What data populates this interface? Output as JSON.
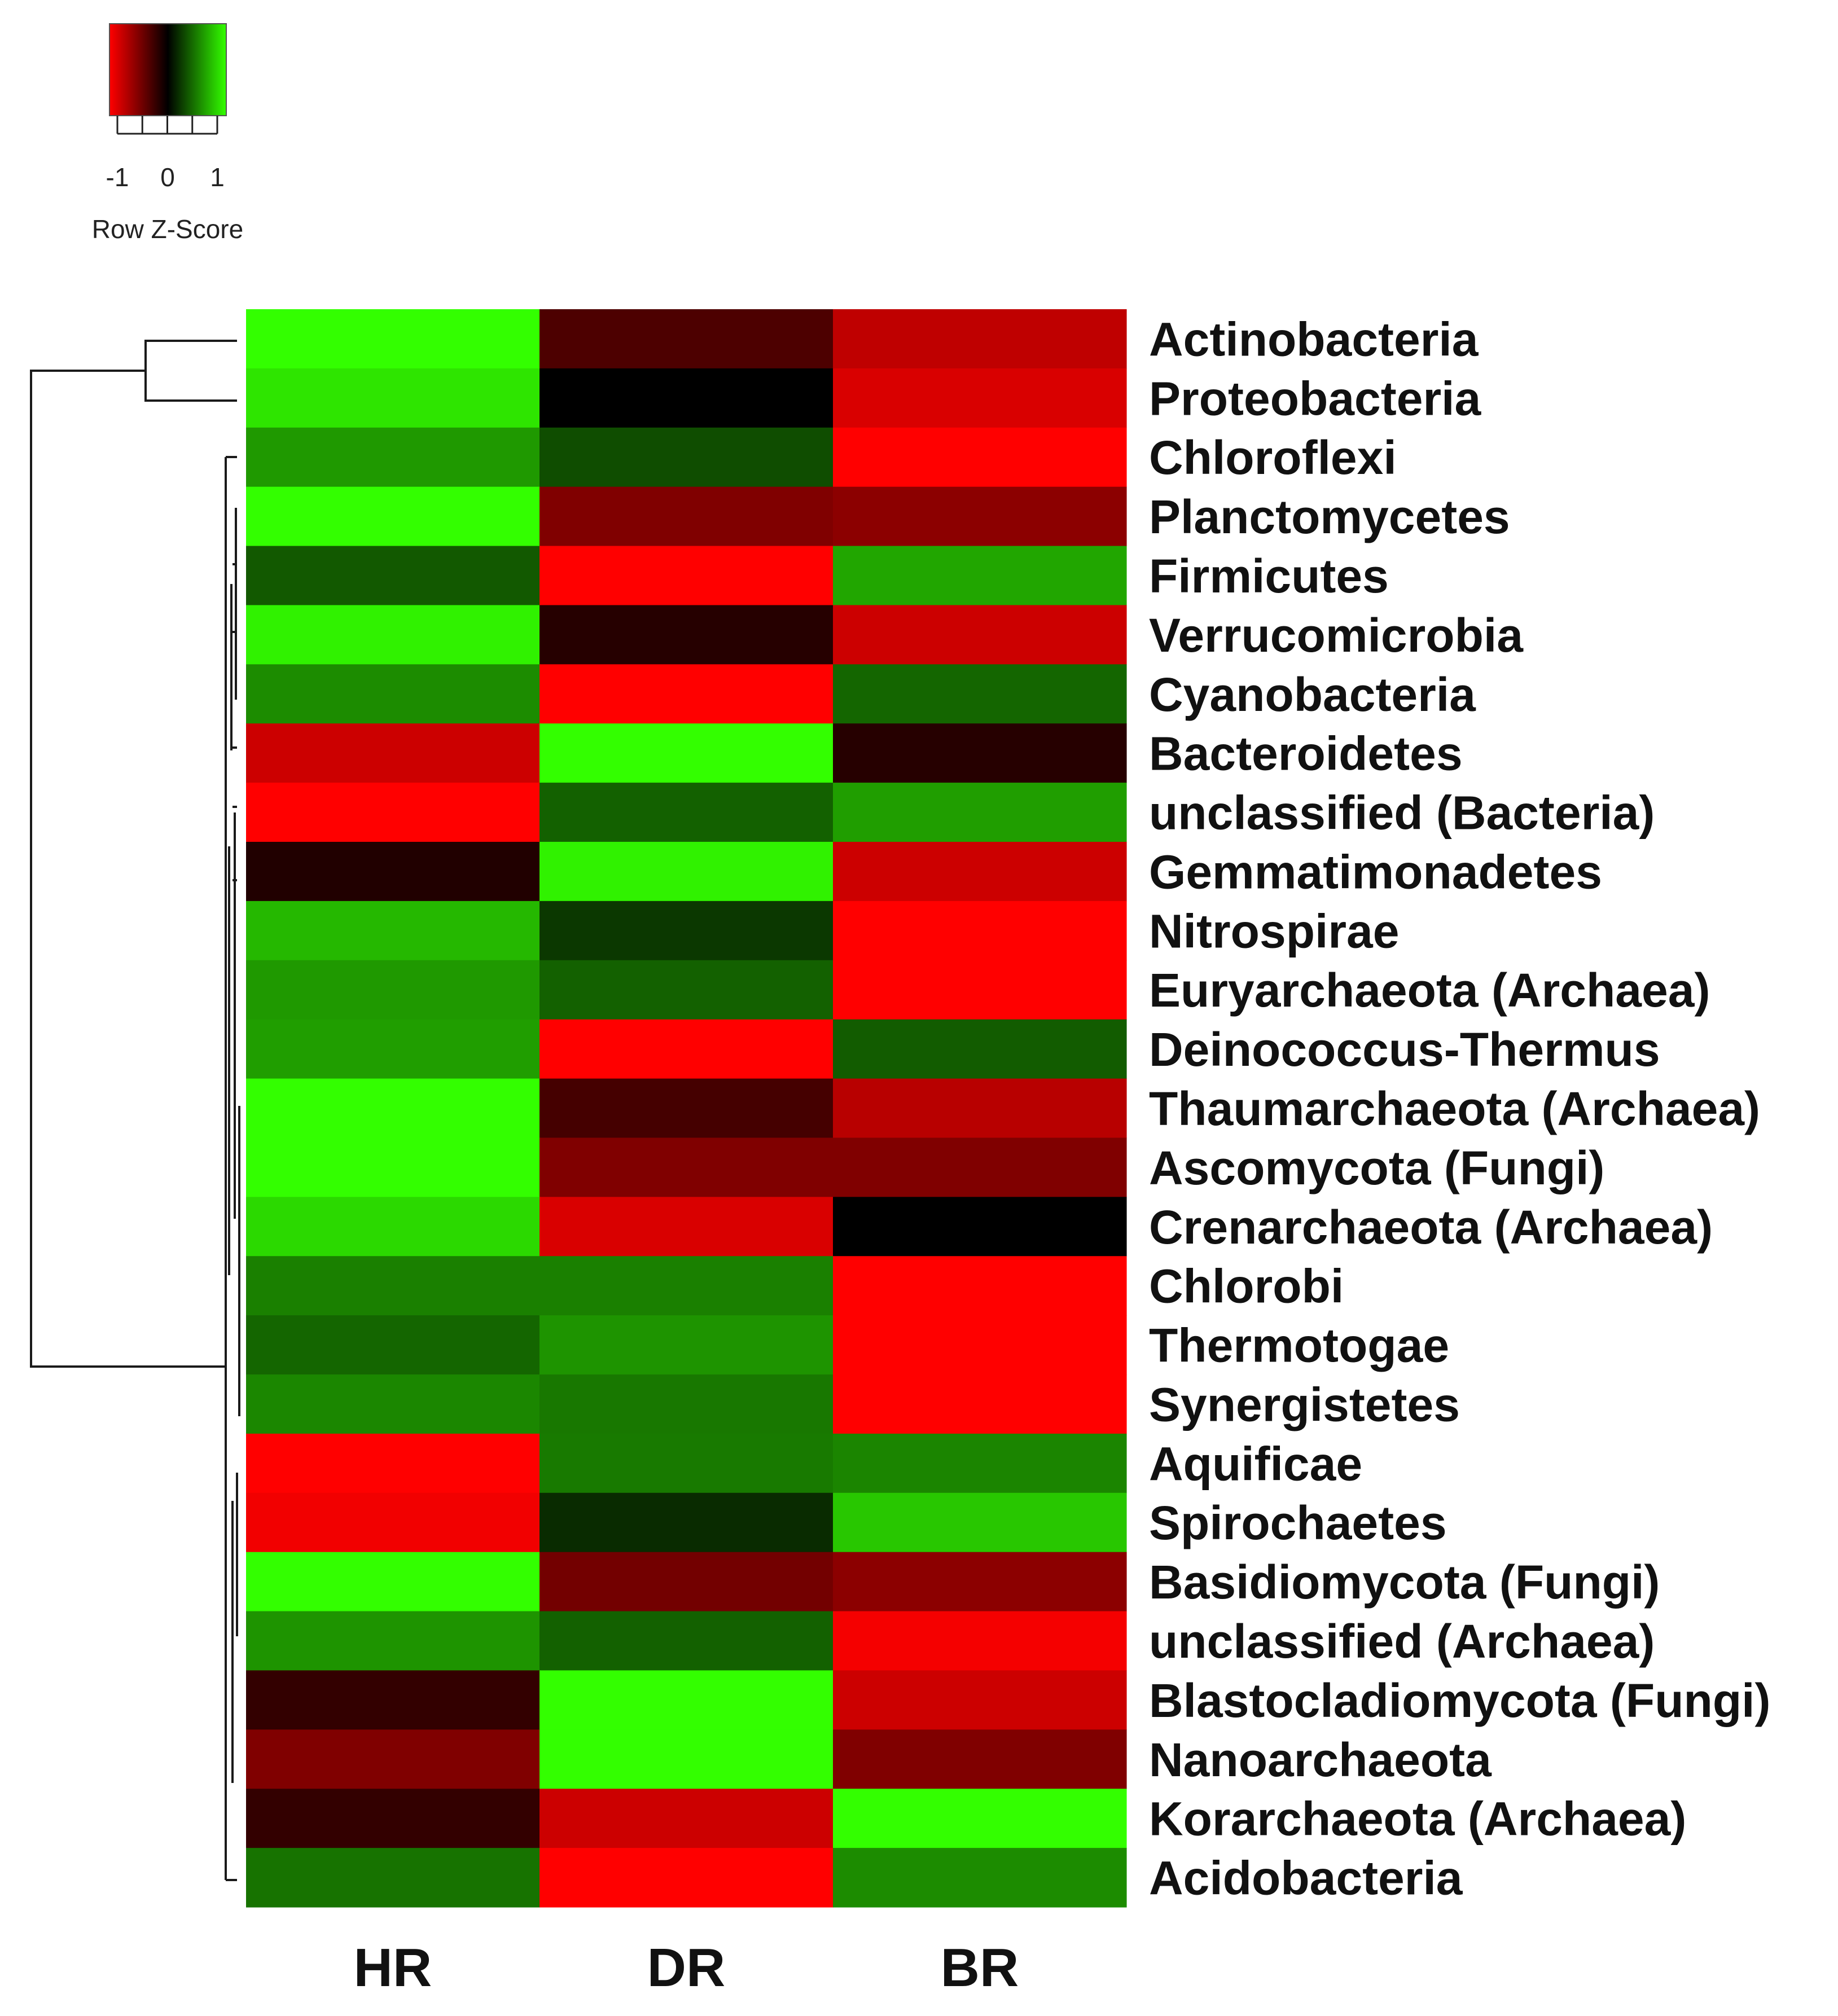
{
  "chart_data": {
    "type": "heatmap",
    "title": "",
    "columns": [
      "HR",
      "DR",
      "BR"
    ],
    "rows": [
      {
        "label": "Actinobacteria",
        "values": [
          1.0,
          -0.3,
          -0.75
        ]
      },
      {
        "label": "Proteobacteria",
        "values": [
          0.9,
          0.0,
          -0.85
        ]
      },
      {
        "label": "Chloroflexi",
        "values": [
          0.6,
          0.3,
          -1.0
        ]
      },
      {
        "label": "Planctomycetes",
        "values": [
          1.0,
          -0.5,
          -0.55
        ]
      },
      {
        "label": "Firmicutes",
        "values": [
          0.35,
          -1.0,
          0.65
        ]
      },
      {
        "label": "Verrucomicrobia",
        "values": [
          0.95,
          -0.15,
          -0.8
        ]
      },
      {
        "label": "Cyanobacteria",
        "values": [
          0.55,
          -1.0,
          0.4
        ]
      },
      {
        "label": "Bacteroidetes",
        "values": [
          -0.8,
          1.0,
          -0.15
        ]
      },
      {
        "label": "unclassified (Bacteria)",
        "values": [
          -1.0,
          0.38,
          0.62
        ]
      },
      {
        "label": "Gemmatimonadetes",
        "values": [
          -0.13,
          0.95,
          -0.8
        ]
      },
      {
        "label": "Nitrospirae",
        "values": [
          0.72,
          0.22,
          -1.0
        ]
      },
      {
        "label": "Euryarchaeota (Archaea)",
        "values": [
          0.6,
          0.38,
          -1.0
        ]
      },
      {
        "label": "Deinococcus-Thermus",
        "values": [
          0.62,
          -1.0,
          0.36
        ]
      },
      {
        "label": "Thaumarchaeota (Archaea)",
        "values": [
          1.0,
          -0.27,
          -0.72
        ]
      },
      {
        "label": "Ascomycota (Fungi)",
        "values": [
          1.0,
          -0.5,
          -0.5
        ]
      },
      {
        "label": "Crenarchaeota (Archaea)",
        "values": [
          0.85,
          -0.85,
          0.0
        ]
      },
      {
        "label": "Chlorobi",
        "values": [
          0.5,
          0.5,
          -1.0
        ]
      },
      {
        "label": "Thermotogae",
        "values": [
          0.4,
          0.58,
          -1.0
        ]
      },
      {
        "label": "Synergistetes",
        "values": [
          0.53,
          0.47,
          -1.0
        ]
      },
      {
        "label": "Aquificae",
        "values": [
          -1.0,
          0.48,
          0.52
        ]
      },
      {
        "label": "Spirochaetes",
        "values": [
          -0.95,
          0.17,
          0.78
        ]
      },
      {
        "label": "Basidiomycota (Fungi)",
        "values": [
          1.0,
          -0.45,
          -0.55
        ]
      },
      {
        "label": "unclassified (Archaea)",
        "values": [
          0.58,
          0.38,
          -0.96
        ]
      },
      {
        "label": "Blastocladiomycota (Fungi)",
        "values": [
          -0.2,
          1.0,
          -0.8
        ]
      },
      {
        "label": "Nanoarchaeota",
        "values": [
          -0.5,
          1.0,
          -0.5
        ]
      },
      {
        "label": "Korarchaeota (Archaea)",
        "values": [
          -0.2,
          -0.8,
          1.0
        ]
      },
      {
        "label": "Acidobacteria",
        "values": [
          0.45,
          -1.0,
          0.55
        ]
      }
    ],
    "color_scale": {
      "low_color": "#ff0000",
      "mid_color": "#000000",
      "high_color": "#33ff00",
      "min": -1,
      "max": 1
    },
    "color_key": {
      "title": "Row Z-Score",
      "tick_labels": [
        "-1",
        "0",
        "1"
      ]
    },
    "dendrogram": "row clustering tree shown on left"
  }
}
